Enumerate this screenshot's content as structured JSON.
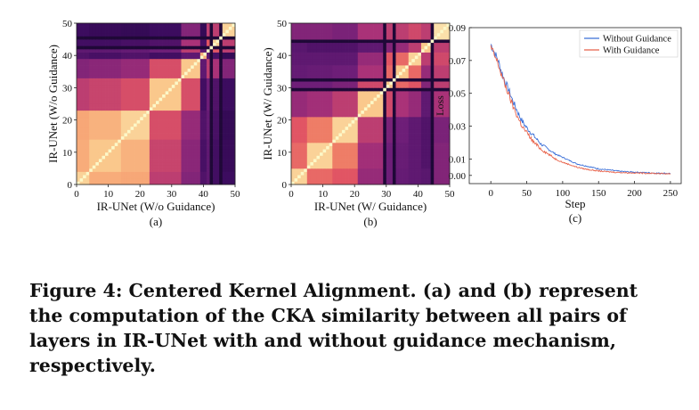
{
  "panels": [
    {
      "id": "a",
      "sublabel": "(a)",
      "chart_data": {
        "type": "heatmap",
        "xlabel": "IR-UNet  (W/o Guidance)",
        "ylabel": "IR-UNet  (W/o Guidance)",
        "xlim": [
          0,
          50
        ],
        "ylim": [
          0,
          50
        ],
        "xticks": [
          "0",
          "10",
          "20",
          "30",
          "40",
          "50"
        ],
        "yticks": [
          "0",
          "10",
          "20",
          "30",
          "40",
          "50"
        ],
        "layers": 50,
        "block_boundaries": [
          0,
          4,
          14,
          23,
          33,
          39,
          41,
          43,
          46,
          50
        ],
        "block_similarity": [
          [
            0.92,
            0.85,
            0.84,
            0.55,
            0.4,
            0.25,
            0.3,
            0.2,
            0.18
          ],
          [
            0.85,
            0.9,
            0.86,
            0.58,
            0.42,
            0.22,
            0.3,
            0.2,
            0.16
          ],
          [
            0.84,
            0.86,
            0.92,
            0.62,
            0.45,
            0.25,
            0.32,
            0.22,
            0.15
          ],
          [
            0.55,
            0.58,
            0.62,
            0.9,
            0.62,
            0.2,
            0.35,
            0.25,
            0.18
          ],
          [
            0.4,
            0.42,
            0.45,
            0.62,
            0.9,
            0.3,
            0.55,
            0.5,
            0.4
          ],
          [
            0.25,
            0.22,
            0.25,
            0.2,
            0.3,
            0.85,
            0.3,
            0.22,
            0.15
          ],
          [
            0.3,
            0.3,
            0.32,
            0.35,
            0.55,
            0.3,
            0.92,
            0.65,
            0.55
          ],
          [
            0.2,
            0.2,
            0.22,
            0.25,
            0.5,
            0.22,
            0.65,
            0.92,
            0.55
          ],
          [
            0.18,
            0.16,
            0.15,
            0.18,
            0.4,
            0.15,
            0.55,
            0.55,
            0.92
          ]
        ],
        "dark_bands": [
          42,
          45
        ]
      }
    },
    {
      "id": "b",
      "sublabel": "(b)",
      "chart_data": {
        "type": "heatmap",
        "xlabel": "IR-UNet  (W/ Guidance)",
        "ylabel": "IR-UNet  (W/ Guidance)",
        "xlim": [
          0,
          50
        ],
        "ylim": [
          0,
          50
        ],
        "xticks": [
          "0",
          "10",
          "20",
          "30",
          "40",
          "50"
        ],
        "yticks": [
          "0",
          "10",
          "20",
          "30",
          "40",
          "50"
        ],
        "layers": 50,
        "block_boundaries": [
          0,
          5,
          13,
          21,
          29,
          33,
          37,
          41,
          44,
          50
        ],
        "block_similarity": [
          [
            0.92,
            0.7,
            0.65,
            0.45,
            0.35,
            0.32,
            0.3,
            0.28,
            0.4
          ],
          [
            0.7,
            0.92,
            0.75,
            0.48,
            0.35,
            0.33,
            0.3,
            0.25,
            0.4
          ],
          [
            0.65,
            0.75,
            0.92,
            0.55,
            0.38,
            0.35,
            0.3,
            0.25,
            0.38
          ],
          [
            0.45,
            0.48,
            0.55,
            0.9,
            0.6,
            0.5,
            0.45,
            0.3,
            0.5
          ],
          [
            0.35,
            0.35,
            0.38,
            0.6,
            0.9,
            0.7,
            0.65,
            0.4,
            0.55
          ],
          [
            0.32,
            0.33,
            0.35,
            0.5,
            0.7,
            0.9,
            0.7,
            0.45,
            0.55
          ],
          [
            0.3,
            0.3,
            0.3,
            0.45,
            0.65,
            0.7,
            0.92,
            0.55,
            0.6
          ],
          [
            0.28,
            0.25,
            0.25,
            0.3,
            0.4,
            0.45,
            0.55,
            0.9,
            0.55
          ],
          [
            0.4,
            0.4,
            0.38,
            0.5,
            0.55,
            0.55,
            0.6,
            0.55,
            0.95
          ]
        ],
        "dark_bands": [
          29,
          32,
          44
        ]
      }
    },
    {
      "id": "c",
      "sublabel": "(c)",
      "chart_data": {
        "type": "line",
        "xlabel": "Step",
        "ylabel": "Loss",
        "xlim": [
          -30,
          265
        ],
        "ylim": [
          -0.005,
          0.09
        ],
        "xticks": [
          0,
          50,
          100,
          150,
          200,
          250
        ],
        "yticks": [
          0.0,
          0.01,
          0.03,
          0.05,
          0.07,
          0.09
        ],
        "ytick_labels": [
          "0.00",
          "0.01",
          "0.03",
          "0.05",
          "0.07",
          "0.09"
        ],
        "legend_position": "top-right",
        "series": [
          {
            "name": "Without Guidance",
            "color": "#3a6fd8",
            "x": [
              0,
              5,
              10,
              15,
              20,
              25,
              30,
              35,
              40,
              45,
              50,
              60,
              70,
              80,
              90,
              100,
              110,
              120,
              130,
              140,
              150,
              160,
              170,
              180,
              190,
              200,
              210,
              220,
              230,
              240,
              250
            ],
            "y": [
              0.08,
              0.075,
              0.07,
              0.063,
              0.057,
              0.052,
              0.046,
              0.041,
              0.036,
              0.032,
              0.029,
              0.024,
              0.019,
              0.016,
              0.013,
              0.011,
              0.009,
              0.007,
              0.006,
              0.005,
              0.004,
              0.0035,
              0.003,
              0.0025,
              0.0022,
              0.002,
              0.0018,
              0.0016,
              0.0014,
              0.0013,
              0.0012
            ]
          },
          {
            "name": "With Guidance",
            "color": "#e8624a",
            "x": [
              0,
              5,
              10,
              15,
              20,
              25,
              30,
              35,
              40,
              45,
              50,
              60,
              70,
              80,
              90,
              100,
              110,
              120,
              130,
              140,
              150,
              160,
              170,
              180,
              190,
              200,
              210,
              220,
              230,
              240,
              250
            ],
            "y": [
              0.078,
              0.073,
              0.068,
              0.061,
              0.055,
              0.049,
              0.043,
              0.038,
              0.033,
              0.029,
              0.026,
              0.02,
              0.016,
              0.013,
              0.01,
              0.008,
              0.0065,
              0.005,
              0.004,
              0.0033,
              0.0027,
              0.0023,
              0.002,
              0.0018,
              0.0016,
              0.0015,
              0.0014,
              0.0013,
              0.0012,
              0.0011,
              0.001
            ]
          }
        ]
      }
    }
  ],
  "caption": "Figure 4: Centered Kernel Alignment. (a) and (b) represent the computation of the CKA similarity between all pairs of layers in IR-UNet with and without guidance mechanism, respectively."
}
